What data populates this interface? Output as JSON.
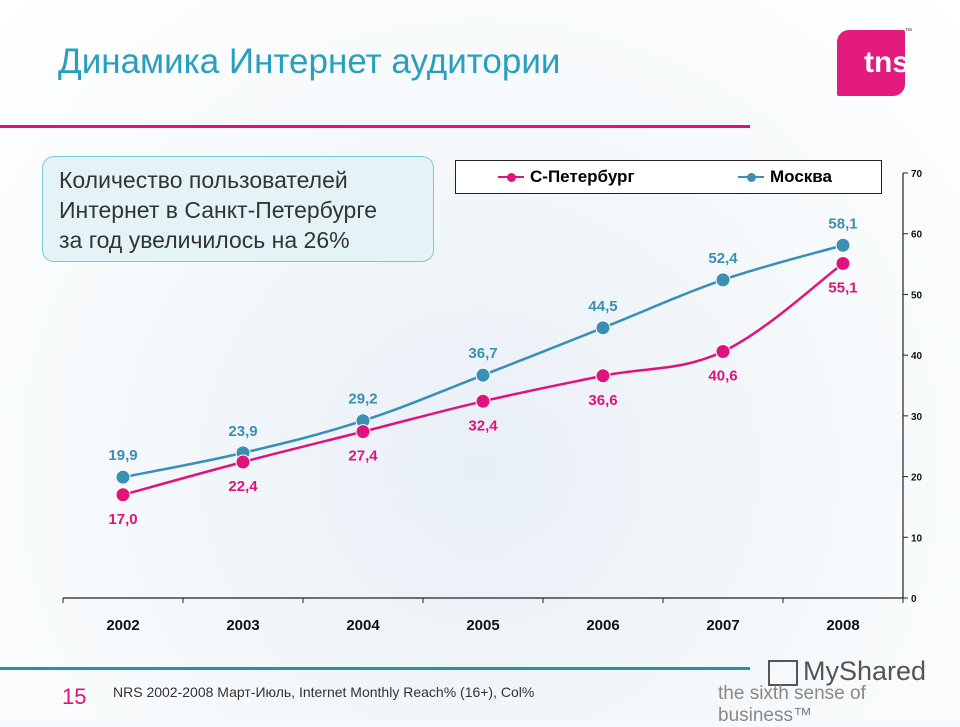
{
  "title": "Динамика Интернет аудитории",
  "logo": "tns",
  "callout": [
    "Количество пользователей",
    "Интернет в Санкт-Петербурге",
    "за год увеличилось на 26%"
  ],
  "footer": {
    "page": "15",
    "source": "NRS 2002-2008 Март-Июль, Internet Monthly Reach% (16+), Col%",
    "watermark": "MyShared",
    "tagline": "the sixth sense of business™"
  },
  "colors": {
    "spb": "#e0137d",
    "moscow": "#3a8fb5",
    "title": "#2a9fbd"
  },
  "chart_data": {
    "type": "line",
    "categories": [
      "2002",
      "2003",
      "2004",
      "2005",
      "2006",
      "2007",
      "2008"
    ],
    "series": [
      {
        "name": "С-Петербург",
        "values": [
          17.0,
          22.4,
          27.4,
          32.4,
          36.6,
          40.6,
          55.1
        ],
        "labels": [
          "17,0",
          "22,4",
          "27,4",
          "32,4",
          "36,6",
          "40,6",
          "55,1"
        ]
      },
      {
        "name": "Москва",
        "values": [
          19.9,
          23.9,
          29.2,
          36.7,
          44.5,
          52.4,
          58.1
        ],
        "labels": [
          "19,9",
          "23,9",
          "29,2",
          "36,7",
          "44,5",
          "52,4",
          "58,1"
        ]
      }
    ],
    "ylim": [
      0,
      70
    ],
    "yticks": [
      "0",
      "10",
      "20",
      "30",
      "40",
      "50",
      "60",
      "70"
    ],
    "yaxis_position": "right",
    "legend": "top",
    "grid": false
  }
}
